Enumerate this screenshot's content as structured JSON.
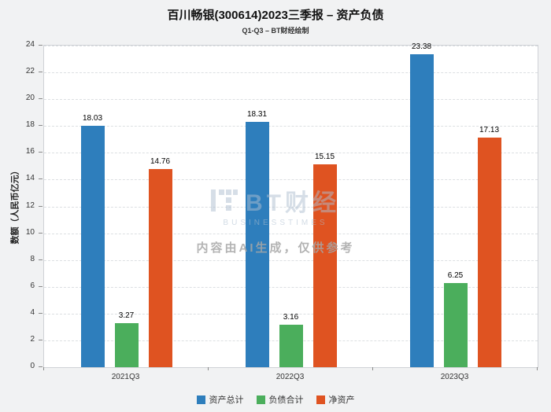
{
  "title": "百川畅银(300614)2023三季报 – 资产负债",
  "subtitle": "Q1-Q3 – BT财经绘制",
  "watermark": {
    "logo_icon": "bt-grid-logo",
    "brand": "BT财经",
    "brand_sub": "BUSINESSTIMES",
    "notice": "内容由AI生成，仅供参考"
  },
  "colors": {
    "assets": "#2E7EBC",
    "liabilities": "#4BAE5C",
    "net_assets": "#DF5321",
    "background": "#F1F2F3",
    "plot_background": "#FFFFFF"
  },
  "chart_data": {
    "type": "bar",
    "title": "百川畅银(300614)2023三季报 – 资产负债",
    "subtitle": "Q1-Q3 – BT财经绘制",
    "categories": [
      "2021Q3",
      "2022Q3",
      "2023Q3"
    ],
    "series": [
      {
        "name": "资产总计",
        "color": "#2E7EBC",
        "values": [
          18.03,
          18.31,
          23.38
        ]
      },
      {
        "name": "负债合计",
        "color": "#4BAE5C",
        "values": [
          3.27,
          3.16,
          6.25
        ]
      },
      {
        "name": "净资产",
        "color": "#DF5321",
        "values": [
          14.76,
          15.15,
          17.13
        ]
      }
    ],
    "xlabel": "",
    "ylabel": "数额（人民币亿元）",
    "ylim": [
      0,
      24
    ],
    "ytick_step": 2,
    "grid": true,
    "grid_style": "dashed",
    "legend_position": "bottom",
    "bar_value_labels": true
  }
}
